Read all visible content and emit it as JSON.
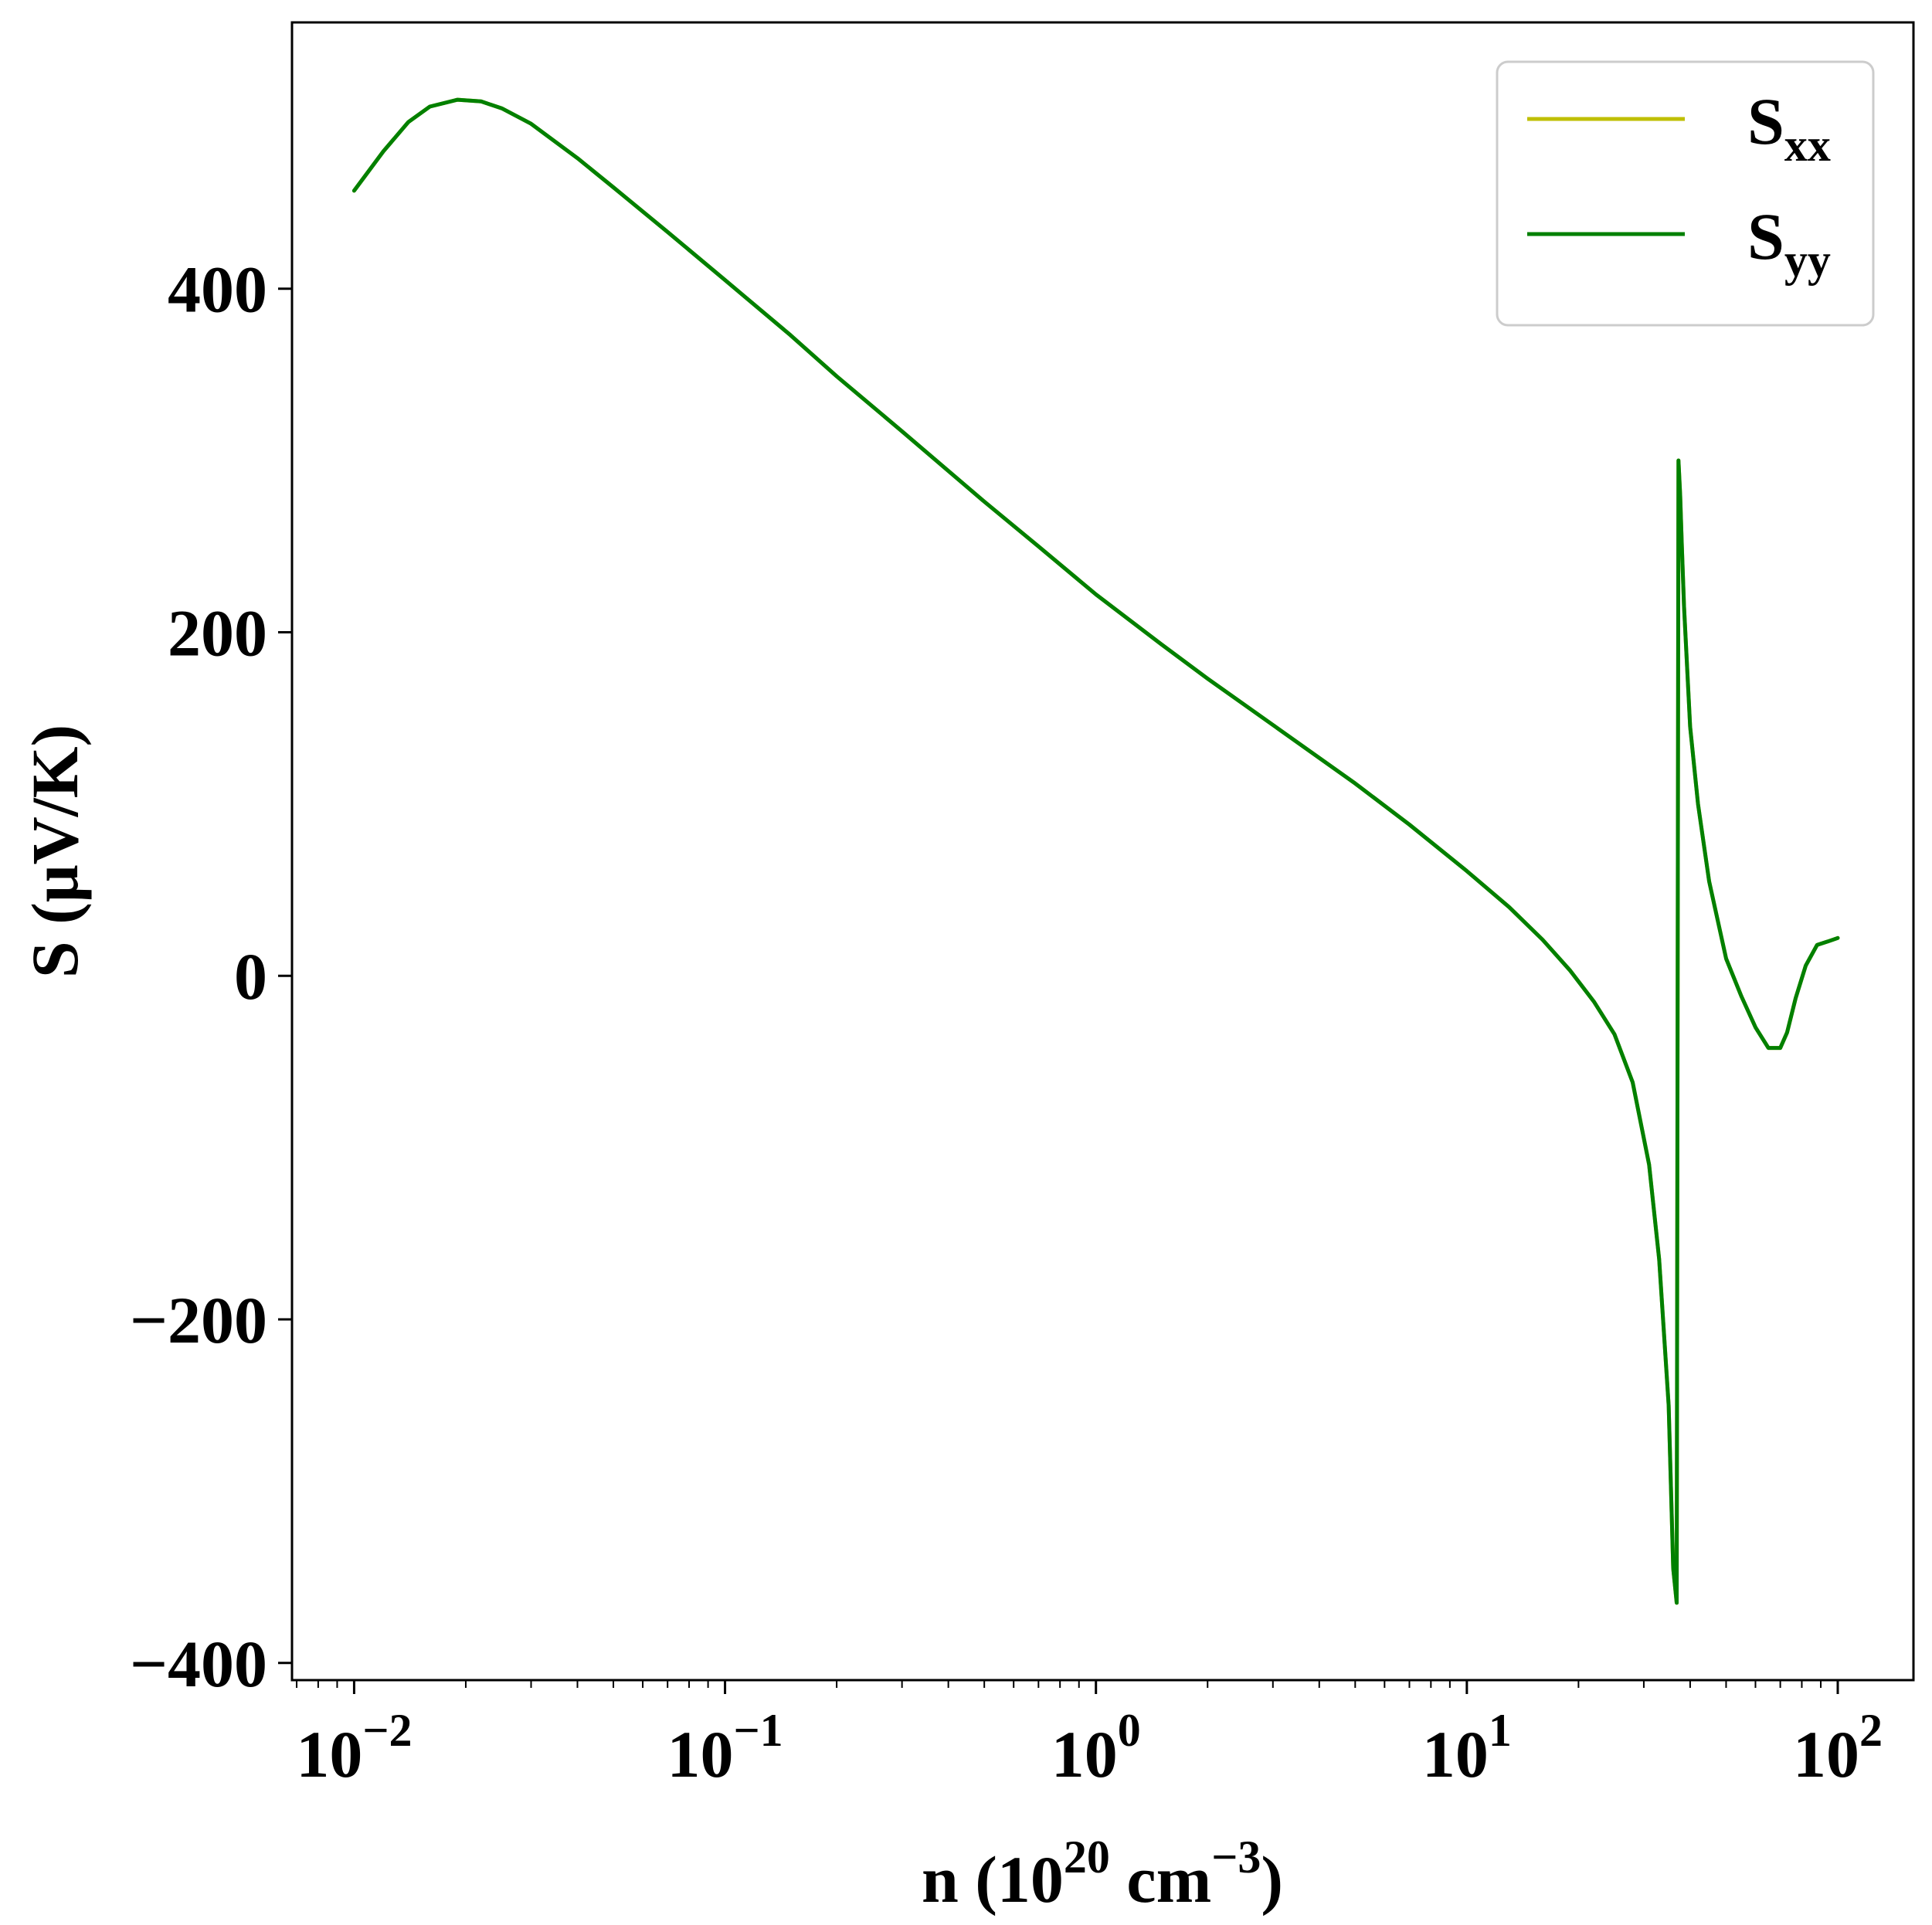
{
  "chart_data": {
    "type": "line",
    "title": "",
    "xlabel": {
      "base": "n (10",
      "sup1": "20",
      "mid": " cm",
      "sup2": "−3",
      "end": ")"
    },
    "ylabel": "S (μV/K)",
    "xscale": "log",
    "xlim": [
      0.0068,
      160
    ],
    "ylim": [
      -410,
      555
    ],
    "x_ticks": [
      {
        "value": 0.01,
        "base": "10",
        "exp": "−2"
      },
      {
        "value": 0.1,
        "base": "10",
        "exp": "−1"
      },
      {
        "value": 1,
        "base": "10",
        "exp": "0"
      },
      {
        "value": 10,
        "base": "10",
        "exp": "1"
      },
      {
        "value": 100,
        "base": "10",
        "exp": "2"
      }
    ],
    "y_ticks": [
      {
        "value": -400,
        "label": "−400"
      },
      {
        "value": -200,
        "label": "−200"
      },
      {
        "value": 0,
        "label": "0"
      },
      {
        "value": 200,
        "label": "200"
      },
      {
        "value": 400,
        "label": "400"
      }
    ],
    "grid": false,
    "legend_position": "top-right",
    "series": [
      {
        "name": {
          "main": "S",
          "sub": "xx"
        },
        "color": "#bfbf00",
        "x": [
          0.01,
          0.012,
          0.014,
          0.016,
          0.019,
          0.022,
          0.025,
          0.03,
          0.04,
          0.05,
          0.07,
          0.1,
          0.15,
          0.2,
          0.3,
          0.5,
          0.7,
          1,
          1.5,
          2,
          3,
          5,
          7,
          10,
          13,
          16,
          19,
          22,
          25,
          28,
          31,
          33,
          35,
          36,
          36.8,
          37.2,
          37.6,
          38,
          38.5,
          40,
          42,
          45,
          50,
          55,
          60,
          65,
          70,
          73,
          77,
          82,
          88,
          94,
          100
        ],
        "values": [
          457,
          480,
          497,
          506,
          510,
          509,
          505,
          496,
          476,
          459,
          433,
          405,
          373,
          349,
          317,
          276,
          250,
          222,
          193,
          173,
          146,
          112,
          88,
          61,
          40,
          21,
          3,
          -15,
          -34,
          -62,
          -110,
          -165,
          -250,
          -345,
          -365,
          300,
          280,
          250,
          215,
          145,
          100,
          55,
          10,
          -12,
          -30,
          -42,
          -42,
          -33,
          -13,
          6,
          18,
          20,
          22
        ]
      },
      {
        "name": {
          "main": "S",
          "sub": "yy"
        },
        "color": "#008000",
        "x": [
          0.01,
          0.012,
          0.014,
          0.016,
          0.019,
          0.022,
          0.025,
          0.03,
          0.04,
          0.05,
          0.07,
          0.1,
          0.15,
          0.2,
          0.3,
          0.5,
          0.7,
          1,
          1.5,
          2,
          3,
          5,
          7,
          10,
          13,
          16,
          19,
          22,
          25,
          28,
          31,
          33,
          35,
          36,
          36.8,
          37.2,
          37.6,
          38,
          38.5,
          40,
          42,
          45,
          50,
          55,
          60,
          65,
          70,
          73,
          77,
          82,
          88,
          94,
          100
        ],
        "values": [
          457,
          480,
          497,
          506,
          510,
          509,
          505,
          496,
          476,
          459,
          433,
          405,
          373,
          349,
          317,
          276,
          250,
          222,
          193,
          173,
          146,
          112,
          88,
          61,
          40,
          21,
          3,
          -15,
          -34,
          -62,
          -110,
          -165,
          -250,
          -345,
          -365,
          300,
          280,
          250,
          215,
          145,
          100,
          55,
          10,
          -12,
          -30,
          -42,
          -42,
          -33,
          -13,
          6,
          18,
          20,
          22
        ]
      }
    ]
  }
}
